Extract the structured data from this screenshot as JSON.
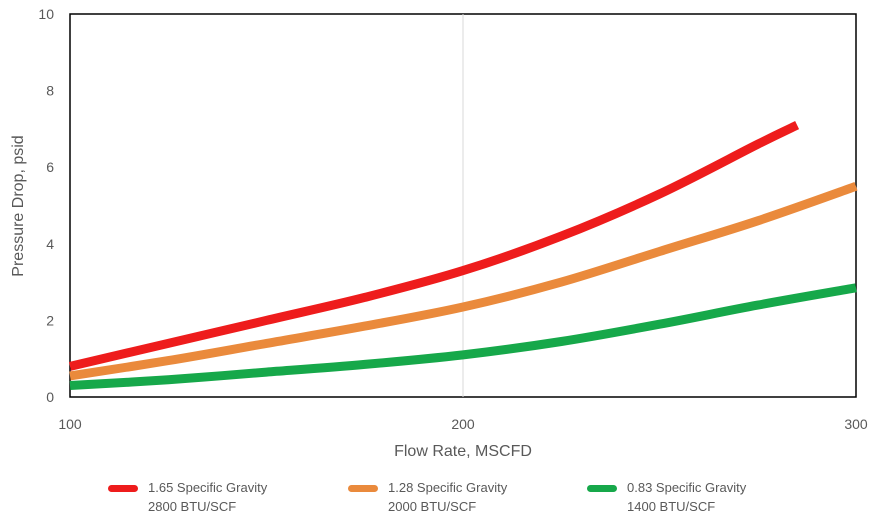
{
  "chart_data": {
    "type": "line",
    "title": "",
    "xlabel": "Flow Rate, MSCFD",
    "ylabel": "Pressure Drop, psid",
    "xlim": [
      100,
      300
    ],
    "ylim": [
      0,
      10
    ],
    "xticks": [
      100,
      200,
      300
    ],
    "yticks": [
      0,
      2,
      4,
      6,
      8,
      10
    ],
    "x_tick_labels": [
      "100",
      "200",
      "300"
    ],
    "y_tick_labels": [
      "0",
      "2",
      "4",
      "6",
      "8",
      "10"
    ],
    "grid": "vertical",
    "legend_position": "bottom",
    "series": [
      {
        "name": "1.65 Specific Gravity",
        "detail": "2800 BTU/SCF",
        "color": "#ee1c1c",
        "x": [
          100,
          125,
          150,
          175,
          200,
          225,
          250,
          275,
          285
        ],
        "y": [
          0.8,
          1.4,
          2.0,
          2.6,
          3.3,
          4.2,
          5.3,
          6.6,
          7.1
        ]
      },
      {
        "name": "1.28 Specific Gravity",
        "detail": "2000 BTU/SCF",
        "color": "#ea8a3c",
        "x": [
          100,
          125,
          150,
          175,
          200,
          225,
          250,
          275,
          300
        ],
        "y": [
          0.55,
          0.95,
          1.4,
          1.85,
          2.35,
          3.0,
          3.8,
          4.6,
          5.5
        ]
      },
      {
        "name": "0.83 Specific Gravity",
        "detail": "1400 BTU/SCF",
        "color": "#16a84a",
        "x": [
          100,
          125,
          150,
          175,
          200,
          225,
          250,
          275,
          300
        ],
        "y": [
          0.3,
          0.45,
          0.65,
          0.85,
          1.1,
          1.45,
          1.9,
          2.4,
          2.85
        ]
      }
    ]
  }
}
